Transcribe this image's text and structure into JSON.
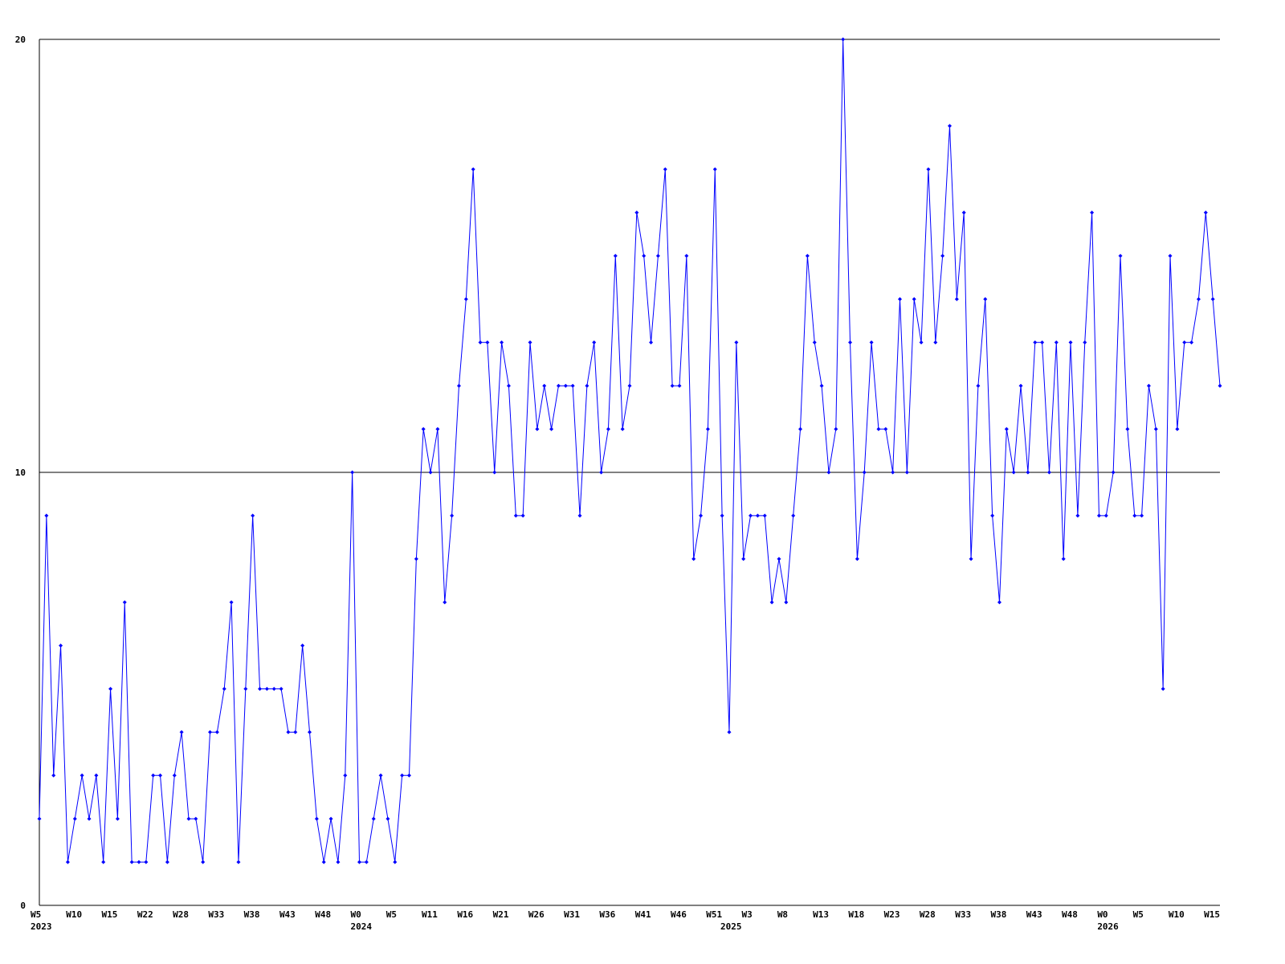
{
  "chart_data": {
    "type": "line",
    "categories": [
      "W5",
      null,
      null,
      null,
      null,
      "W10",
      null,
      null,
      null,
      null,
      "W15",
      null,
      null,
      null,
      null,
      "W22",
      null,
      null,
      null,
      null,
      "W28",
      null,
      null,
      null,
      null,
      "W33",
      null,
      null,
      null,
      null,
      "W38",
      null,
      null,
      null,
      null,
      "W43",
      null,
      null,
      null,
      null,
      "W48",
      null,
      null,
      null,
      null,
      "W0",
      null,
      null,
      null,
      null,
      "W5",
      null,
      null,
      null,
      null,
      "W11",
      null,
      null,
      null,
      null,
      "W16",
      null,
      null,
      null,
      null,
      "W21",
      null,
      null,
      null,
      null,
      "W26",
      null,
      null,
      null,
      null,
      "W31",
      null,
      null,
      null,
      null,
      "W36",
      null,
      null,
      null,
      null,
      "W41",
      null,
      null,
      null,
      null,
      "W46",
      null,
      null,
      null,
      null,
      "W51",
      null,
      null,
      null,
      null,
      "W3",
      null,
      null,
      null,
      null,
      "W8",
      null,
      null,
      null,
      null,
      "W13",
      null,
      null,
      null,
      null,
      "W18",
      null,
      null,
      null,
      null,
      "W23",
      null,
      null,
      null,
      null,
      "W28",
      null,
      null,
      null,
      null,
      "W33",
      null,
      null,
      null,
      null,
      "W38",
      null,
      null,
      null,
      null,
      "W43",
      null,
      null,
      null,
      null,
      "W48",
      null,
      null,
      null,
      null,
      "W0",
      null,
      null,
      null,
      null,
      "W5",
      null,
      null,
      null,
      null,
      "W10",
      null,
      null,
      null,
      null,
      "W15",
      null
    ],
    "category_years": [
      "2023",
      null,
      null,
      null,
      null,
      null,
      null,
      null,
      null,
      null,
      null,
      null,
      null,
      null,
      null,
      null,
      null,
      null,
      null,
      null,
      null,
      null,
      null,
      null,
      null,
      null,
      null,
      null,
      null,
      null,
      null,
      null,
      null,
      null,
      null,
      null,
      null,
      null,
      null,
      null,
      null,
      null,
      null,
      null,
      null,
      "2024",
      null,
      null,
      null,
      null,
      null,
      null,
      null,
      null,
      null,
      null,
      null,
      null,
      null,
      null,
      null,
      null,
      null,
      null,
      null,
      null,
      null,
      null,
      null,
      null,
      null,
      null,
      null,
      null,
      null,
      null,
      null,
      null,
      null,
      null,
      null,
      null,
      null,
      null,
      null,
      null,
      null,
      null,
      null,
      null,
      null,
      null,
      null,
      null,
      null,
      null,
      null,
      "2025",
      null,
      null,
      null,
      null,
      null,
      null,
      null,
      null,
      null,
      null,
      null,
      null,
      null,
      null,
      null,
      null,
      null,
      null,
      null,
      null,
      null,
      null,
      null,
      null,
      null,
      null,
      null,
      null,
      null,
      null,
      null,
      null,
      null,
      null,
      null,
      null,
      null,
      null,
      null,
      null,
      null,
      null,
      null,
      null,
      null,
      null,
      null,
      null,
      null,
      null,
      null,
      null,
      "2026",
      null,
      null,
      null,
      null,
      null,
      null,
      null,
      null,
      null,
      null,
      null,
      null,
      null,
      null,
      null,
      null
    ],
    "series": [
      {
        "color": "#0000ff",
        "values": [
          2,
          9,
          3,
          6,
          1,
          2,
          3,
          2,
          3,
          1,
          5,
          2,
          7,
          1,
          1,
          1,
          3,
          3,
          1,
          3,
          4,
          2,
          2,
          1,
          4,
          4,
          5,
          7,
          1,
          5,
          9,
          5,
          5,
          5,
          5,
          4,
          4,
          6,
          4,
          2,
          1,
          2,
          1,
          3,
          10,
          1,
          1,
          2,
          3,
          2,
          1,
          3,
          3,
          8,
          11,
          10,
          11,
          7,
          9,
          12,
          14,
          17,
          13,
          13,
          10,
          13,
          12,
          9,
          9,
          13,
          11,
          12,
          11,
          12,
          12,
          12,
          9,
          12,
          13,
          10,
          11,
          15,
          11,
          12,
          16,
          15,
          13,
          15,
          17,
          12,
          12,
          15,
          8,
          9,
          11,
          17,
          9,
          4,
          13,
          8,
          9,
          9,
          9,
          7,
          8,
          7,
          9,
          11,
          15,
          13,
          12,
          10,
          11,
          20,
          13,
          8,
          10,
          13,
          11,
          11,
          10,
          14,
          10,
          14,
          13,
          17,
          13,
          15,
          18,
          14,
          16,
          8,
          12,
          14,
          9,
          7,
          11,
          10,
          12,
          10,
          13,
          13,
          10,
          13,
          8,
          13,
          9,
          13,
          16,
          9,
          9,
          10,
          15,
          11,
          9,
          9,
          12,
          11,
          5,
          15,
          11,
          13,
          13,
          14,
          16,
          14,
          12
        ]
      }
    ],
    "ylim": [
      0,
      20
    ],
    "yticks": [
      0,
      10,
      20
    ],
    "grid": true
  }
}
